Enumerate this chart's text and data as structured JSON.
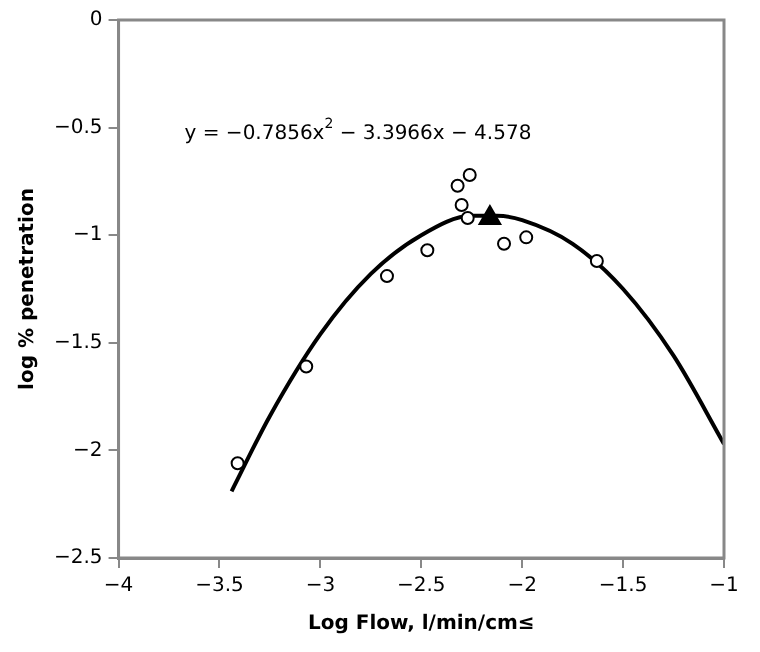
{
  "chart_data": {
    "type": "scatter",
    "xlabel": "Log Flow, l/min/cm≤",
    "ylabel": "log % penetration",
    "annotations": [
      "y = −0.7856x$^{2}$ − 3.3966x − 4.578"
    ],
    "series": [
      {
        "color": "#000000",
        "marker": "circle",
        "x": [
          -3.41,
          -3.07,
          -2.67,
          -2.47,
          -2.32,
          -2.26,
          -2.3,
          -2.27,
          -2.09,
          -1.98,
          -1.63
        ],
        "values": [
          -2.06,
          -1.61,
          -1.19,
          -1.07,
          -0.77,
          -0.72,
          -0.86,
          -0.92,
          -1.04,
          -1.01,
          -1.12
        ]
      },
      {
        "color": "#000000",
        "marker": "triangle",
        "x": [
          -2.16
        ],
        "values": [
          -0.92
        ]
      },
      {
        "type": "line",
        "color": "#000000",
        "marker": "none",
        "x": [
          -3.44,
          -3.25,
          -3,
          -2.75,
          -2.5,
          -2.25,
          -2.125,
          -2,
          -1.75,
          -1.5,
          -1.25,
          -1
        ],
        "values": [
          -2.19,
          -1.84,
          -1.46,
          -1.18,
          -1.0,
          -0.91,
          -0.91,
          -0.93,
          -1.04,
          -1.25,
          -1.56,
          -1.97
        ]
      }
    ],
    "xlim": [
      -4,
      -1
    ],
    "xticks": [
      -4,
      -3.5,
      -3,
      -2.5,
      -2,
      -1.5,
      -1
    ],
    "ylim": [
      -2.5,
      0
    ],
    "yticks": [
      -2.5,
      -2,
      -1.5,
      -1,
      -0.5,
      0
    ],
    "grid": false,
    "legend": false
  }
}
